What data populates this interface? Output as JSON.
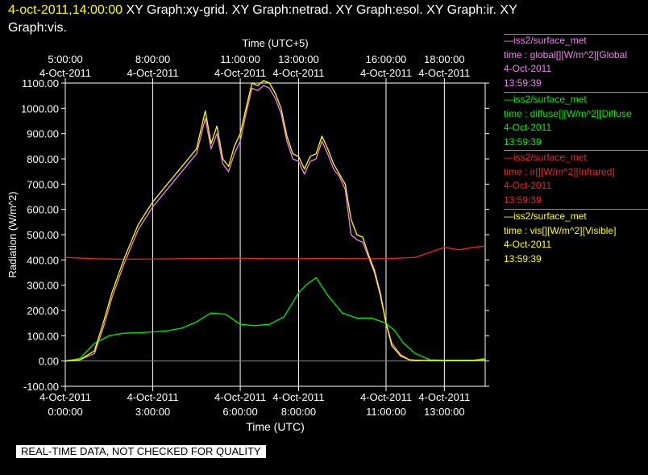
{
  "header": {
    "timestamp": "4-oct-2011,14:00:00",
    "graphs_line1": "XY Graph:xy-grid.  XY Graph:netrad.  XY Graph:esol.  XY Graph:ir.  XY",
    "graphs_line2": "Graph:vis."
  },
  "legend": [
    {
      "line1": "—iss2/surface_met",
      "line2": "time : global[][W/m^2][Global",
      "line3": "4-Oct-2011",
      "line4": "13:59:39",
      "color": "#ee82ee"
    },
    {
      "line1": "—iss2/surface_met",
      "line2": "time : diffuse[][W/m^2][Diffuse",
      "line3": "4-Oct-2011",
      "line4": "13:59:39",
      "color": "#00ee00"
    },
    {
      "line1": "—iss2/surface_met",
      "line2": "time : ir[][W/m^2][Infrared]",
      "line3": "4-Oct-2011",
      "line4": "13:59:39",
      "color": "#ee2222"
    },
    {
      "line1": "—iss2/surface_met",
      "line2": "time : vis[][W/m^2][Visible]",
      "line3": "4-Oct-2011",
      "line4": "13:59:39",
      "color": "#ffff00"
    }
  ],
  "footer": "REAL-TIME DATA, NOT CHECKED FOR QUALITY",
  "chart_data": {
    "type": "line",
    "title": "",
    "xlabel": "Time (UTC)",
    "x2label": "Time (UTC+5)",
    "ylabel": "Radiation (W/m^2)",
    "xlim": [
      0.0,
      14.4
    ],
    "ylim": [
      -100,
      1100
    ],
    "grid": true,
    "x_ticks_bottom": [
      {
        "x": 0,
        "date": "4-Oct-2011",
        "time": "0:00:00"
      },
      {
        "x": 3,
        "date": "4-Oct-2011",
        "time": "3:00:00"
      },
      {
        "x": 6,
        "date": "4-Oct-2011",
        "time": "6:00:00"
      },
      {
        "x": 8,
        "date": "4-Oct-2011",
        "time": "8:00:00"
      },
      {
        "x": 11,
        "date": "4-Oct-2011",
        "time": "11:00:00"
      },
      {
        "x": 13,
        "date": "4-Oct-2011",
        "time": "13:00:00"
      }
    ],
    "x_ticks_top": [
      {
        "x": 0,
        "time": "5:00:00",
        "date": "4-Oct-2011"
      },
      {
        "x": 3,
        "time": "8:00:00",
        "date": "4-Oct-2011"
      },
      {
        "x": 6,
        "time": "11:00:00",
        "date": "4-Oct-2011"
      },
      {
        "x": 8,
        "time": "13:00:00",
        "date": "4-Oct-2011"
      },
      {
        "x": 11,
        "time": "16:00:00",
        "date": "4-Oct-2011"
      },
      {
        "x": 13,
        "time": "18:00:00",
        "date": "4-Oct-2011"
      }
    ],
    "y_ticks": [
      "-100.00",
      "0.00",
      "100.00",
      "200.00",
      "300.00",
      "400.00",
      "500.00",
      "600.00",
      "700.00",
      "800.00",
      "900.00",
      "1000.00",
      "1100.00"
    ],
    "series": [
      {
        "name": "global",
        "color": "#ee82ee",
        "x": [
          0,
          0.5,
          1.0,
          1.3,
          1.6,
          2.0,
          2.5,
          3.0,
          3.5,
          4.0,
          4.5,
          4.8,
          5.0,
          5.2,
          5.4,
          5.6,
          5.8,
          6.0,
          6.2,
          6.4,
          6.6,
          6.8,
          7.0,
          7.2,
          7.4,
          7.6,
          7.8,
          8.0,
          8.2,
          8.4,
          8.6,
          8.8,
          9.0,
          9.2,
          9.4,
          9.6,
          9.8,
          10.0,
          10.2,
          10.4,
          10.6,
          10.8,
          11.0,
          11.2,
          11.5,
          11.8,
          12.0,
          12.3,
          12.5,
          13.0,
          14.0,
          14.4
        ],
        "y": [
          0,
          5,
          30,
          130,
          250,
          380,
          520,
          610,
          680,
          750,
          820,
          960,
          840,
          900,
          780,
          750,
          820,
          870,
          980,
          1080,
          1070,
          1090,
          1080,
          1040,
          980,
          870,
          800,
          790,
          740,
          790,
          800,
          870,
          820,
          760,
          730,
          680,
          500,
          480,
          470,
          410,
          350,
          260,
          150,
          70,
          25,
          5,
          3,
          2,
          2,
          2,
          2,
          5
        ]
      },
      {
        "name": "diffuse",
        "color": "#00ee00",
        "x": [
          0,
          0.5,
          1.0,
          1.5,
          2.0,
          2.5,
          3.0,
          3.5,
          4.0,
          4.5,
          5.0,
          5.5,
          6.0,
          6.5,
          7.0,
          7.5,
          8.0,
          8.3,
          8.6,
          9.0,
          9.5,
          10.0,
          10.5,
          11.0,
          11.3,
          11.6,
          12.0,
          12.5,
          13.0,
          14.0,
          14.4
        ],
        "y": [
          0,
          10,
          70,
          100,
          110,
          112,
          115,
          120,
          130,
          155,
          190,
          185,
          145,
          140,
          145,
          175,
          270,
          305,
          330,
          260,
          190,
          170,
          170,
          150,
          120,
          70,
          30,
          5,
          3,
          3,
          10
        ]
      },
      {
        "name": "ir",
        "color": "#ee2222",
        "x": [
          0,
          1,
          2,
          3,
          4,
          5,
          6,
          7,
          8,
          9,
          10,
          11,
          12,
          12.5,
          13,
          13.5,
          14,
          14.4
        ],
        "y": [
          410,
          405,
          403,
          404,
          405,
          406,
          407,
          405,
          405,
          406,
          405,
          405,
          410,
          430,
          450,
          440,
          450,
          455
        ]
      },
      {
        "name": "vis",
        "color": "#ffff00",
        "x": [
          0,
          0.5,
          1.0,
          1.3,
          1.6,
          2.0,
          2.5,
          3.0,
          3.5,
          4.0,
          4.5,
          4.8,
          5.0,
          5.2,
          5.4,
          5.6,
          5.8,
          6.0,
          6.2,
          6.4,
          6.6,
          6.8,
          7.0,
          7.2,
          7.4,
          7.6,
          7.8,
          8.0,
          8.2,
          8.4,
          8.6,
          8.8,
          9.0,
          9.2,
          9.4,
          9.6,
          9.8,
          10.0,
          10.2,
          10.4,
          10.6,
          10.8,
          11.0,
          11.2,
          11.5,
          11.8,
          12.0,
          12.3,
          12.5,
          13.0,
          14.0,
          14.4
        ],
        "y": [
          0,
          5,
          40,
          150,
          270,
          400,
          540,
          630,
          700,
          770,
          840,
          990,
          860,
          930,
          800,
          770,
          850,
          900,
          1000,
          1100,
          1090,
          1110,
          1100,
          1060,
          1000,
          890,
          820,
          810,
          760,
          810,
          820,
          890,
          840,
          780,
          740,
          700,
          560,
          500,
          490,
          420,
          360,
          270,
          150,
          60,
          20,
          5,
          3,
          2,
          2,
          2,
          2,
          5
        ]
      }
    ]
  }
}
